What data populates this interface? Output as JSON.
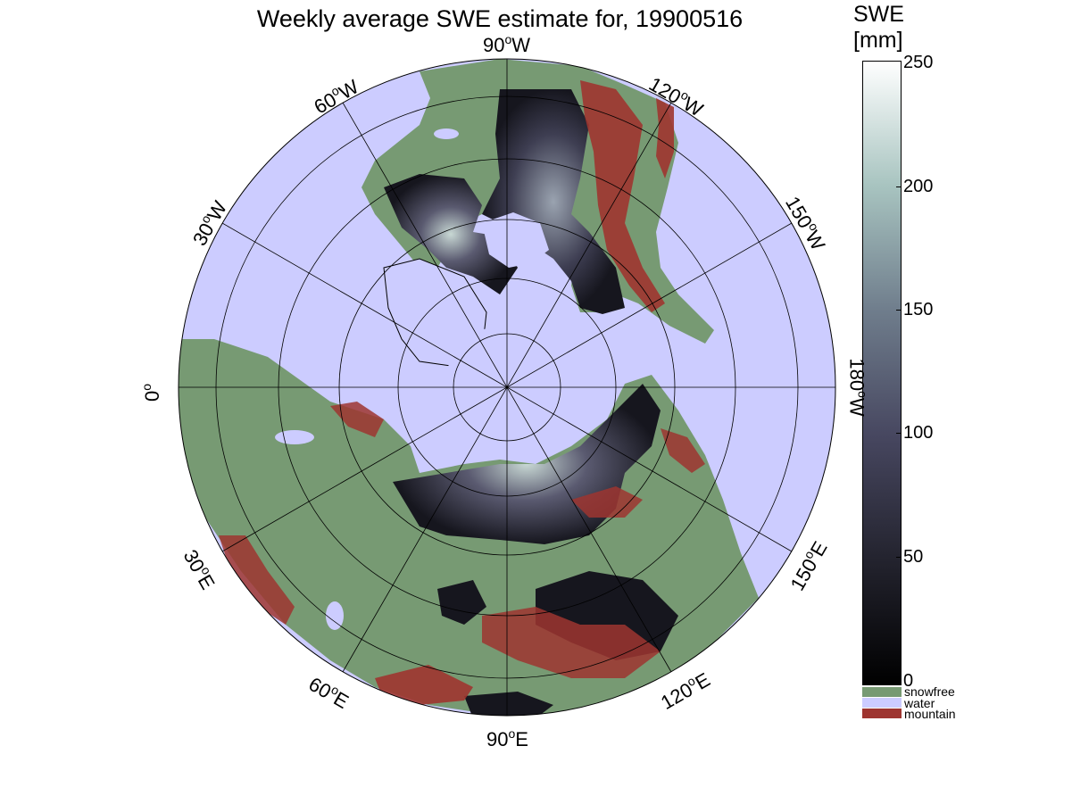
{
  "title": "Weekly average SWE estimate for, 19900516",
  "colorbar": {
    "title_line1": "SWE",
    "title_line2": "[mm]",
    "ticks": [
      "0",
      "50",
      "100",
      "150",
      "200",
      "250"
    ],
    "range": [
      0,
      250
    ],
    "gradient_colors": [
      "#000000",
      "#23232e",
      "#474760",
      "#6f7d8c",
      "#a8c4c0",
      "#ffffff"
    ],
    "categories": [
      {
        "label": "snowfree",
        "color": "#779a73"
      },
      {
        "label": "water",
        "color": "#ccccff"
      },
      {
        "label": "mountain",
        "color": "#9e3530"
      }
    ]
  },
  "map": {
    "projection": "polar stereographic (north pole)",
    "ocean_color": "#ccccff",
    "land_color": "#779a73",
    "snow_dark_color": "#16161e",
    "mountain_color": "#9e3530",
    "grid": true,
    "lon_labels": [
      {
        "deg": "90",
        "hemi": "W"
      },
      {
        "deg": "120",
        "hemi": "W"
      },
      {
        "deg": "150",
        "hemi": "W"
      },
      {
        "deg": "180",
        "hemi": "W"
      },
      {
        "deg": "150",
        "hemi": "E"
      },
      {
        "deg": "120",
        "hemi": "E"
      },
      {
        "deg": "90",
        "hemi": "E"
      },
      {
        "deg": "60",
        "hemi": "E"
      },
      {
        "deg": "30",
        "hemi": "E"
      },
      {
        "deg": "0",
        "hemi": ""
      },
      {
        "deg": "30",
        "hemi": "W"
      },
      {
        "deg": "60",
        "hemi": "W"
      }
    ]
  }
}
